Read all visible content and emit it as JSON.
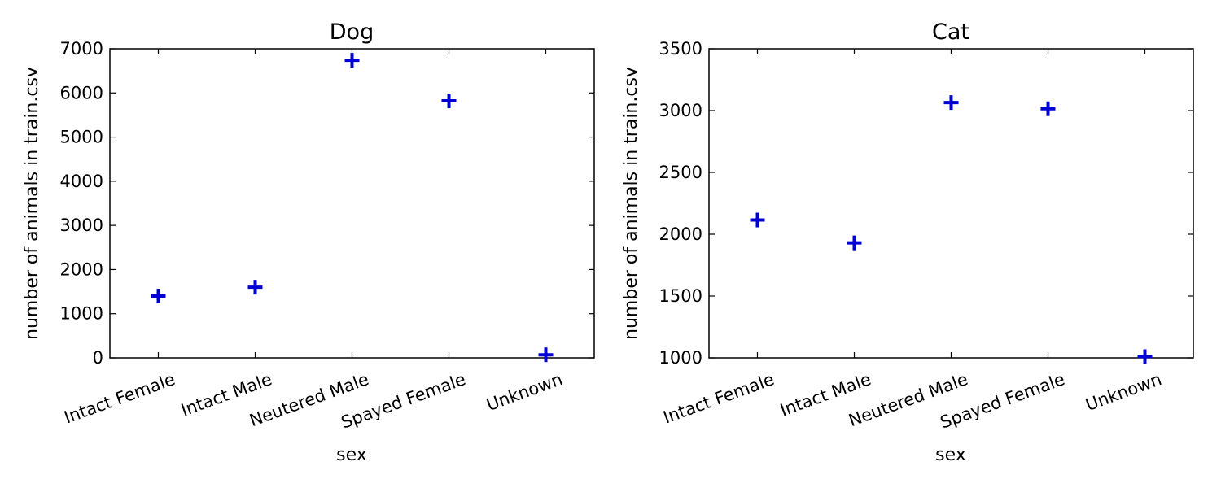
{
  "chart_data": [
    {
      "type": "scatter",
      "title": "Dog",
      "xlabel": "sex",
      "ylabel": "number of animals in train.csv",
      "categories": [
        "Intact Female",
        "Intact Male",
        "Neutered Male",
        "Spayed Female",
        "Unknown"
      ],
      "values": [
        1400,
        1600,
        6740,
        5820,
        70
      ],
      "ylim": [
        0,
        7000
      ],
      "yticks": [
        "0",
        "1000",
        "2000",
        "3000",
        "4000",
        "5000",
        "6000",
        "7000"
      ],
      "marker": "plus",
      "color": "#0000d6",
      "grid": false
    },
    {
      "type": "scatter",
      "title": "Cat",
      "xlabel": "sex",
      "ylabel": "number of animals in train.csv",
      "categories": [
        "Intact Female",
        "Intact Male",
        "Neutered Male",
        "Spayed Female",
        "Unknown"
      ],
      "values": [
        2115,
        1930,
        3065,
        3015,
        1010
      ],
      "ylim": [
        1000,
        3500
      ],
      "yticks": [
        "1000",
        "1500",
        "2000",
        "2500",
        "3000",
        "3500"
      ],
      "marker": "plus",
      "color": "#0000d6",
      "grid": false
    }
  ]
}
